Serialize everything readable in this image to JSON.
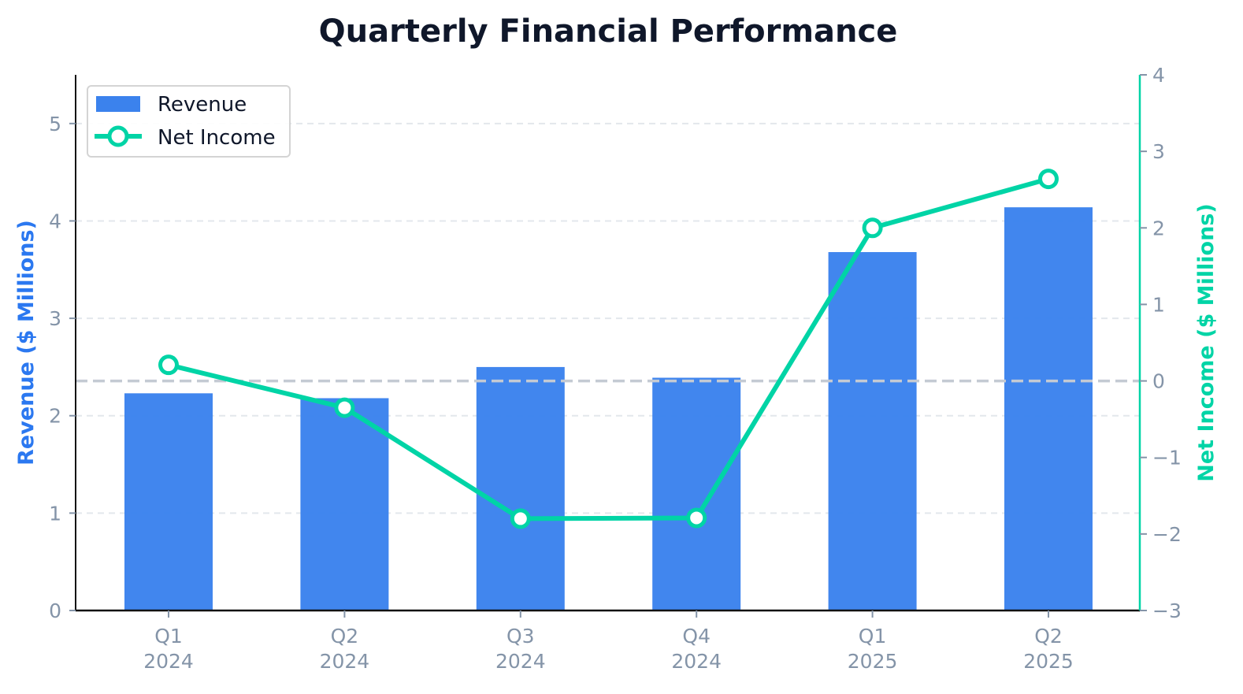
{
  "chart_data": {
    "type": "bar+line",
    "title": "Quarterly Financial Performance",
    "categories": [
      [
        "Q1",
        "2024"
      ],
      [
        "Q2",
        "2024"
      ],
      [
        "Q3",
        "2024"
      ],
      [
        "Q4",
        "2024"
      ],
      [
        "Q1",
        "2025"
      ],
      [
        "Q2",
        "2025"
      ]
    ],
    "series": [
      {
        "name": "Revenue",
        "type": "bar",
        "axis": "left",
        "color": "#3b82ed",
        "values": [
          2.23,
          2.18,
          2.5,
          2.39,
          3.68,
          4.14
        ]
      },
      {
        "name": "Net Income",
        "type": "line",
        "axis": "right",
        "color": "#00d4a6",
        "marker": "hollow-circle",
        "values": [
          0.21,
          -0.35,
          -1.8,
          -1.79,
          2.0,
          2.64
        ]
      }
    ],
    "left_axis": {
      "label": "Revenue ($ Millions)",
      "label_color": "#2b78f0",
      "ylim": [
        0,
        5.5
      ],
      "ticks": [
        0,
        1,
        2,
        3,
        4,
        5
      ]
    },
    "right_axis": {
      "label": "Net Income ($ Millions)",
      "label_color": "#00d4a6",
      "spine_color": "#00d4a6",
      "ylim": [
        -3,
        4
      ],
      "ticks": [
        -3,
        -2,
        -1,
        0,
        1,
        2,
        3,
        4
      ],
      "tick_labels": [
        "−3",
        "−2",
        "−1",
        "0",
        "1",
        "2",
        "3",
        "4"
      ]
    },
    "zero_line": {
      "axis": "right",
      "value": 0,
      "style": "dashed",
      "color": "#c4cad3"
    },
    "grid": {
      "on": true,
      "axis": "y",
      "style": "dashed",
      "color": "#e3e7ec"
    },
    "legend": {
      "position": "upper left",
      "entries": [
        "Revenue",
        "Net Income"
      ]
    }
  }
}
